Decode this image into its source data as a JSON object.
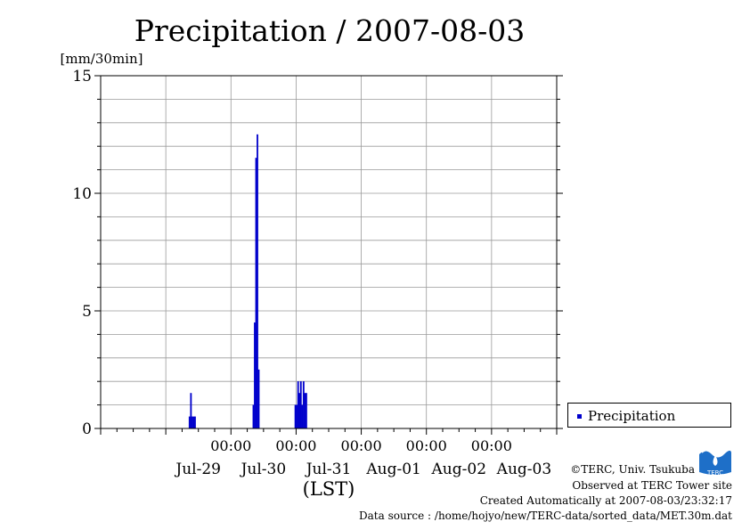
{
  "chart_data": {
    "type": "bar",
    "title": "Precipitation / 2007-08-03",
    "ylabel": "[mm/30min]",
    "xlabel": "(LST)",
    "ylim": [
      0,
      15
    ],
    "yticks": [
      0,
      5,
      10,
      15
    ],
    "xlim": [
      "2007-07-28T00:00",
      "2007-08-04T00:00"
    ],
    "time_ticks": [
      "00:00",
      "00:00",
      "00:00",
      "00:00",
      "00:00"
    ],
    "date_labels": [
      "Jul-29",
      "Jul-30",
      "Jul-31",
      "Aug-01",
      "Aug-02",
      "Aug-03"
    ],
    "grid": true,
    "legend_position": "right",
    "series": [
      {
        "name": "Precipitation",
        "color": "#0000cc",
        "points": [
          {
            "t": "2007-07-29T08:30",
            "v": 0.5
          },
          {
            "t": "2007-07-29T09:00",
            "v": 1.5
          },
          {
            "t": "2007-07-29T09:30",
            "v": 0.5
          },
          {
            "t": "2007-07-29T10:00",
            "v": 0.5
          },
          {
            "t": "2007-07-29T10:30",
            "v": 0.5
          },
          {
            "t": "2007-07-30T08:00",
            "v": 1.0
          },
          {
            "t": "2007-07-30T08:30",
            "v": 4.5
          },
          {
            "t": "2007-07-30T09:00",
            "v": 11.5
          },
          {
            "t": "2007-07-30T09:30",
            "v": 12.5
          },
          {
            "t": "2007-07-30T10:00",
            "v": 2.5
          },
          {
            "t": "2007-07-30T23:30",
            "v": 1.0
          },
          {
            "t": "2007-07-31T00:00",
            "v": 1.0
          },
          {
            "t": "2007-07-31T00:30",
            "v": 2.0
          },
          {
            "t": "2007-07-31T01:00",
            "v": 1.5
          },
          {
            "t": "2007-07-31T01:30",
            "v": 2.0
          },
          {
            "t": "2007-07-31T02:00",
            "v": 1.0
          },
          {
            "t": "2007-07-31T02:30",
            "v": 2.0
          },
          {
            "t": "2007-07-31T03:00",
            "v": 1.5
          },
          {
            "t": "2007-07-31T03:30",
            "v": 1.5
          }
        ]
      }
    ]
  },
  "legend": {
    "label": "Precipitation"
  },
  "credits": {
    "copyright": "©TERC, Univ. Tsukuba",
    "site": "Observed at TERC Tower site",
    "created": "Created Automatically at 2007-08-03/23:32:17",
    "source": "Data source : /home/hojyo/new/TERC-data/sorted_data/MET.30m.dat"
  },
  "logo": {
    "text": "TERC",
    "color": "#1e6fc8"
  }
}
